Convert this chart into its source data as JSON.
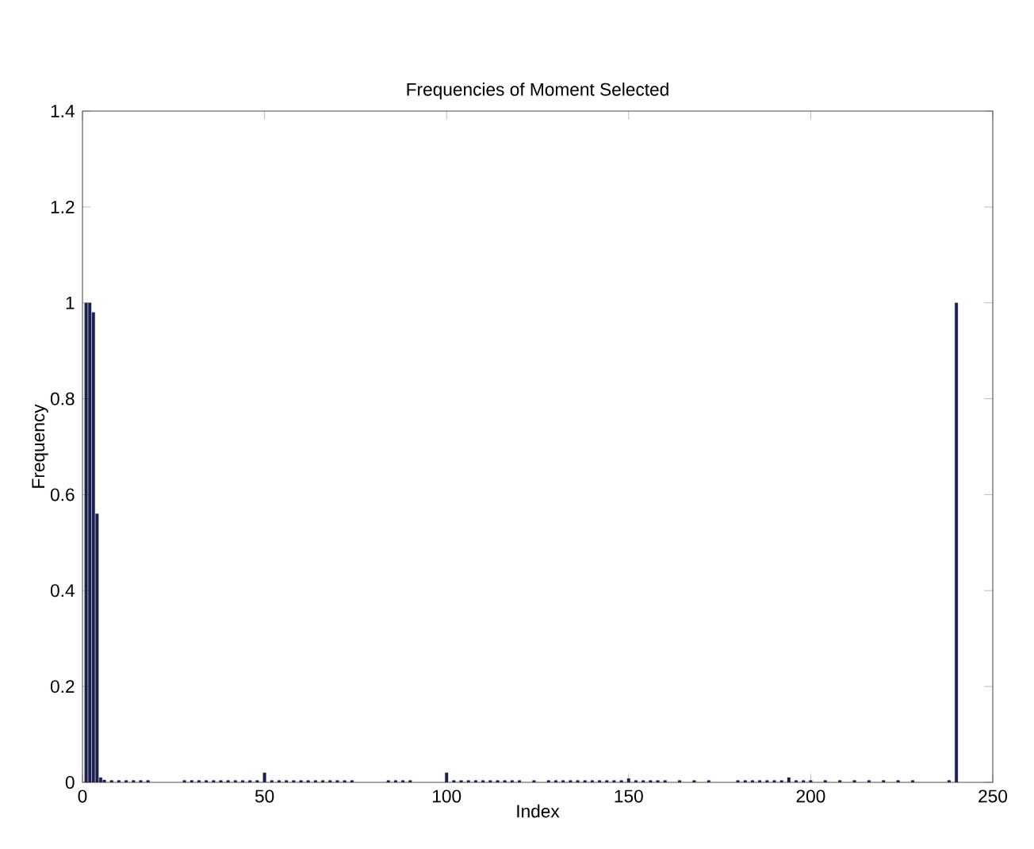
{
  "chart_data": {
    "type": "bar",
    "title": "Frequencies of Moment Selected",
    "xlabel": "Index",
    "ylabel": "Frequency",
    "x": [
      1,
      2,
      3,
      4,
      5,
      6,
      8,
      10,
      12,
      14,
      16,
      18,
      28,
      30,
      32,
      34,
      36,
      38,
      40,
      42,
      44,
      46,
      48,
      50,
      52,
      54,
      56,
      58,
      60,
      62,
      64,
      66,
      68,
      70,
      72,
      74,
      84,
      86,
      88,
      90,
      100,
      102,
      104,
      106,
      108,
      110,
      112,
      114,
      116,
      118,
      120,
      124,
      128,
      130,
      132,
      134,
      136,
      138,
      140,
      142,
      144,
      146,
      148,
      150,
      152,
      154,
      156,
      158,
      160,
      164,
      168,
      172,
      180,
      182,
      184,
      186,
      188,
      190,
      192,
      194,
      196,
      198,
      200,
      204,
      208,
      212,
      216,
      220,
      224,
      228,
      238,
      240
    ],
    "values": [
      1.0,
      1.0,
      0.98,
      0.56,
      0.01,
      0.005,
      0.004,
      0.004,
      0.004,
      0.004,
      0.004,
      0.004,
      0.004,
      0.004,
      0.004,
      0.004,
      0.004,
      0.004,
      0.004,
      0.004,
      0.004,
      0.004,
      0.004,
      0.02,
      0.004,
      0.004,
      0.004,
      0.004,
      0.004,
      0.004,
      0.004,
      0.004,
      0.004,
      0.004,
      0.004,
      0.004,
      0.004,
      0.004,
      0.004,
      0.004,
      0.02,
      0.004,
      0.004,
      0.004,
      0.004,
      0.004,
      0.004,
      0.004,
      0.004,
      0.004,
      0.004,
      0.004,
      0.004,
      0.004,
      0.004,
      0.004,
      0.004,
      0.004,
      0.004,
      0.004,
      0.004,
      0.004,
      0.004,
      0.008,
      0.004,
      0.004,
      0.004,
      0.004,
      0.004,
      0.004,
      0.004,
      0.004,
      0.004,
      0.004,
      0.004,
      0.004,
      0.004,
      0.004,
      0.004,
      0.01,
      0.004,
      0.004,
      0.004,
      0.004,
      0.004,
      0.004,
      0.004,
      0.004,
      0.004,
      0.004,
      0.004,
      1.0
    ],
    "color": "#1c2150",
    "xlim": [
      0,
      250
    ],
    "xticks": [
      0,
      50,
      100,
      150,
      200,
      250
    ],
    "ylim": [
      0,
      1.4
    ],
    "yticks": [
      0,
      0.2,
      0.4,
      0.6,
      0.8,
      1,
      1.2,
      1.4
    ],
    "grid": false
  }
}
